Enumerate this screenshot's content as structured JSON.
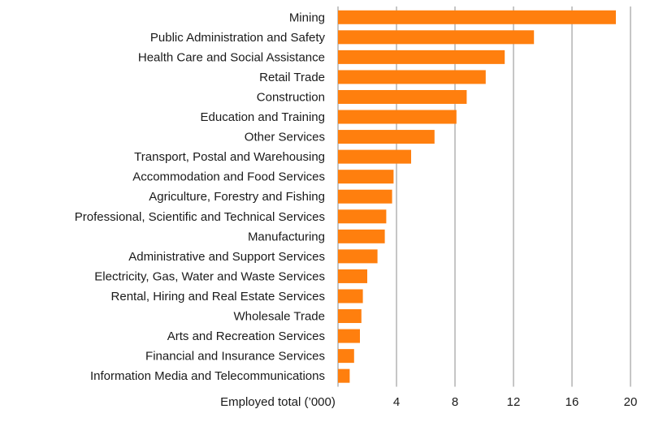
{
  "chart_data": {
    "type": "bar",
    "orientation": "horizontal",
    "categories": [
      "Mining",
      "Public Administration and Safety",
      "Health Care and Social Assistance",
      "Retail Trade",
      "Construction",
      "Education and Training",
      "Other Services",
      "Transport, Postal and Warehousing",
      "Accommodation and Food Services",
      "Agriculture, Forestry and Fishing",
      "Professional, Scientific and Technical Services",
      "Manufacturing",
      "Administrative and Support Services",
      "Electricity, Gas, Water and Waste Services",
      "Rental, Hiring and Real Estate Services",
      "Wholesale Trade",
      "Arts and Recreation Services",
      "Financial and Insurance Services",
      "Information Media and Telecommunications"
    ],
    "values": [
      19.0,
      13.4,
      11.4,
      10.1,
      8.8,
      8.1,
      6.6,
      5.0,
      3.8,
      3.7,
      3.3,
      3.2,
      2.7,
      2.0,
      1.7,
      1.6,
      1.5,
      1.1,
      0.8
    ],
    "xlabel": "Employed total (’000)",
    "ylabel": "",
    "title": "",
    "xlim": [
      0,
      20
    ],
    "xticks": [
      4,
      8,
      12,
      16,
      20
    ],
    "grid": true,
    "bar_color": "#FF7F0E",
    "grid_color": "#8c8c8c"
  }
}
